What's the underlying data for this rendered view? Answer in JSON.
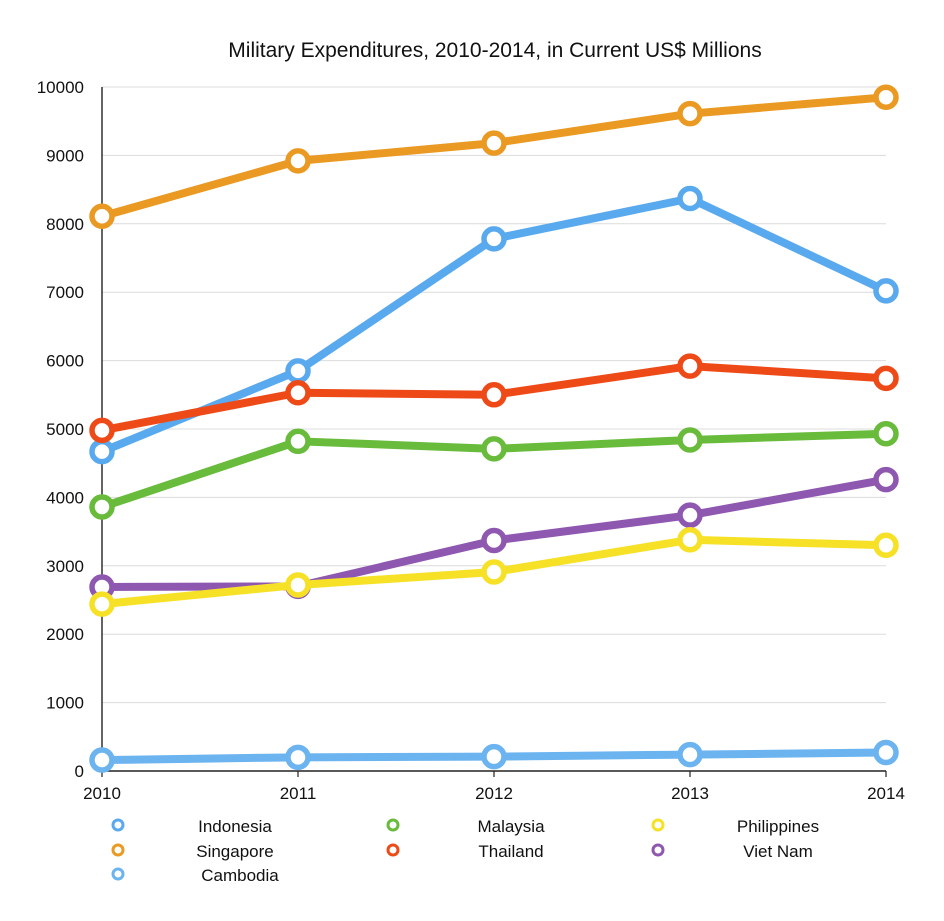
{
  "chart_data": {
    "type": "line",
    "title": "Military Expenditures, 2010-2014, in Current US$ Millions",
    "xlabel": "",
    "ylabel": "",
    "categories": [
      "2010",
      "2011",
      "2012",
      "2013",
      "2014"
    ],
    "ylim": [
      0,
      10000
    ],
    "yticks": [
      0,
      1000,
      2000,
      3000,
      4000,
      5000,
      6000,
      7000,
      8000,
      9000,
      10000
    ],
    "grid": true,
    "legend_position": "bottom",
    "series": [
      {
        "name": "Indonesia",
        "color": "#59a9ee",
        "values": [
          4670,
          5850,
          7780,
          8370,
          7020
        ]
      },
      {
        "name": "Singapore",
        "color": "#ea9a22",
        "values": [
          8110,
          8920,
          9180,
          9610,
          9850
        ]
      },
      {
        "name": "Cambodia",
        "color": "#6cb4f0",
        "values": [
          160,
          200,
          210,
          240,
          270
        ]
      },
      {
        "name": "Malaysia",
        "color": "#69bb3c",
        "values": [
          3860,
          4820,
          4710,
          4840,
          4930
        ]
      },
      {
        "name": "Thailand",
        "color": "#ee4a18",
        "values": [
          4980,
          5530,
          5500,
          5920,
          5740
        ]
      },
      {
        "name": "Philippines",
        "color": "#f6e127",
        "values": [
          2440,
          2720,
          2910,
          3380,
          3300
        ]
      },
      {
        "name": "Viet Nam",
        "color": "#8f58b0",
        "values": [
          2690,
          2700,
          3370,
          3740,
          4260
        ]
      }
    ],
    "legend_columns": [
      [
        "Indonesia",
        "Singapore",
        "Cambodia"
      ],
      [
        "Malaysia",
        "Thailand"
      ],
      [
        "Philippines",
        "Viet Nam"
      ]
    ],
    "draw_order": [
      "Cambodia",
      "Indonesia",
      "Malaysia",
      "Viet Nam",
      "Philippines",
      "Thailand",
      "Singapore"
    ]
  }
}
